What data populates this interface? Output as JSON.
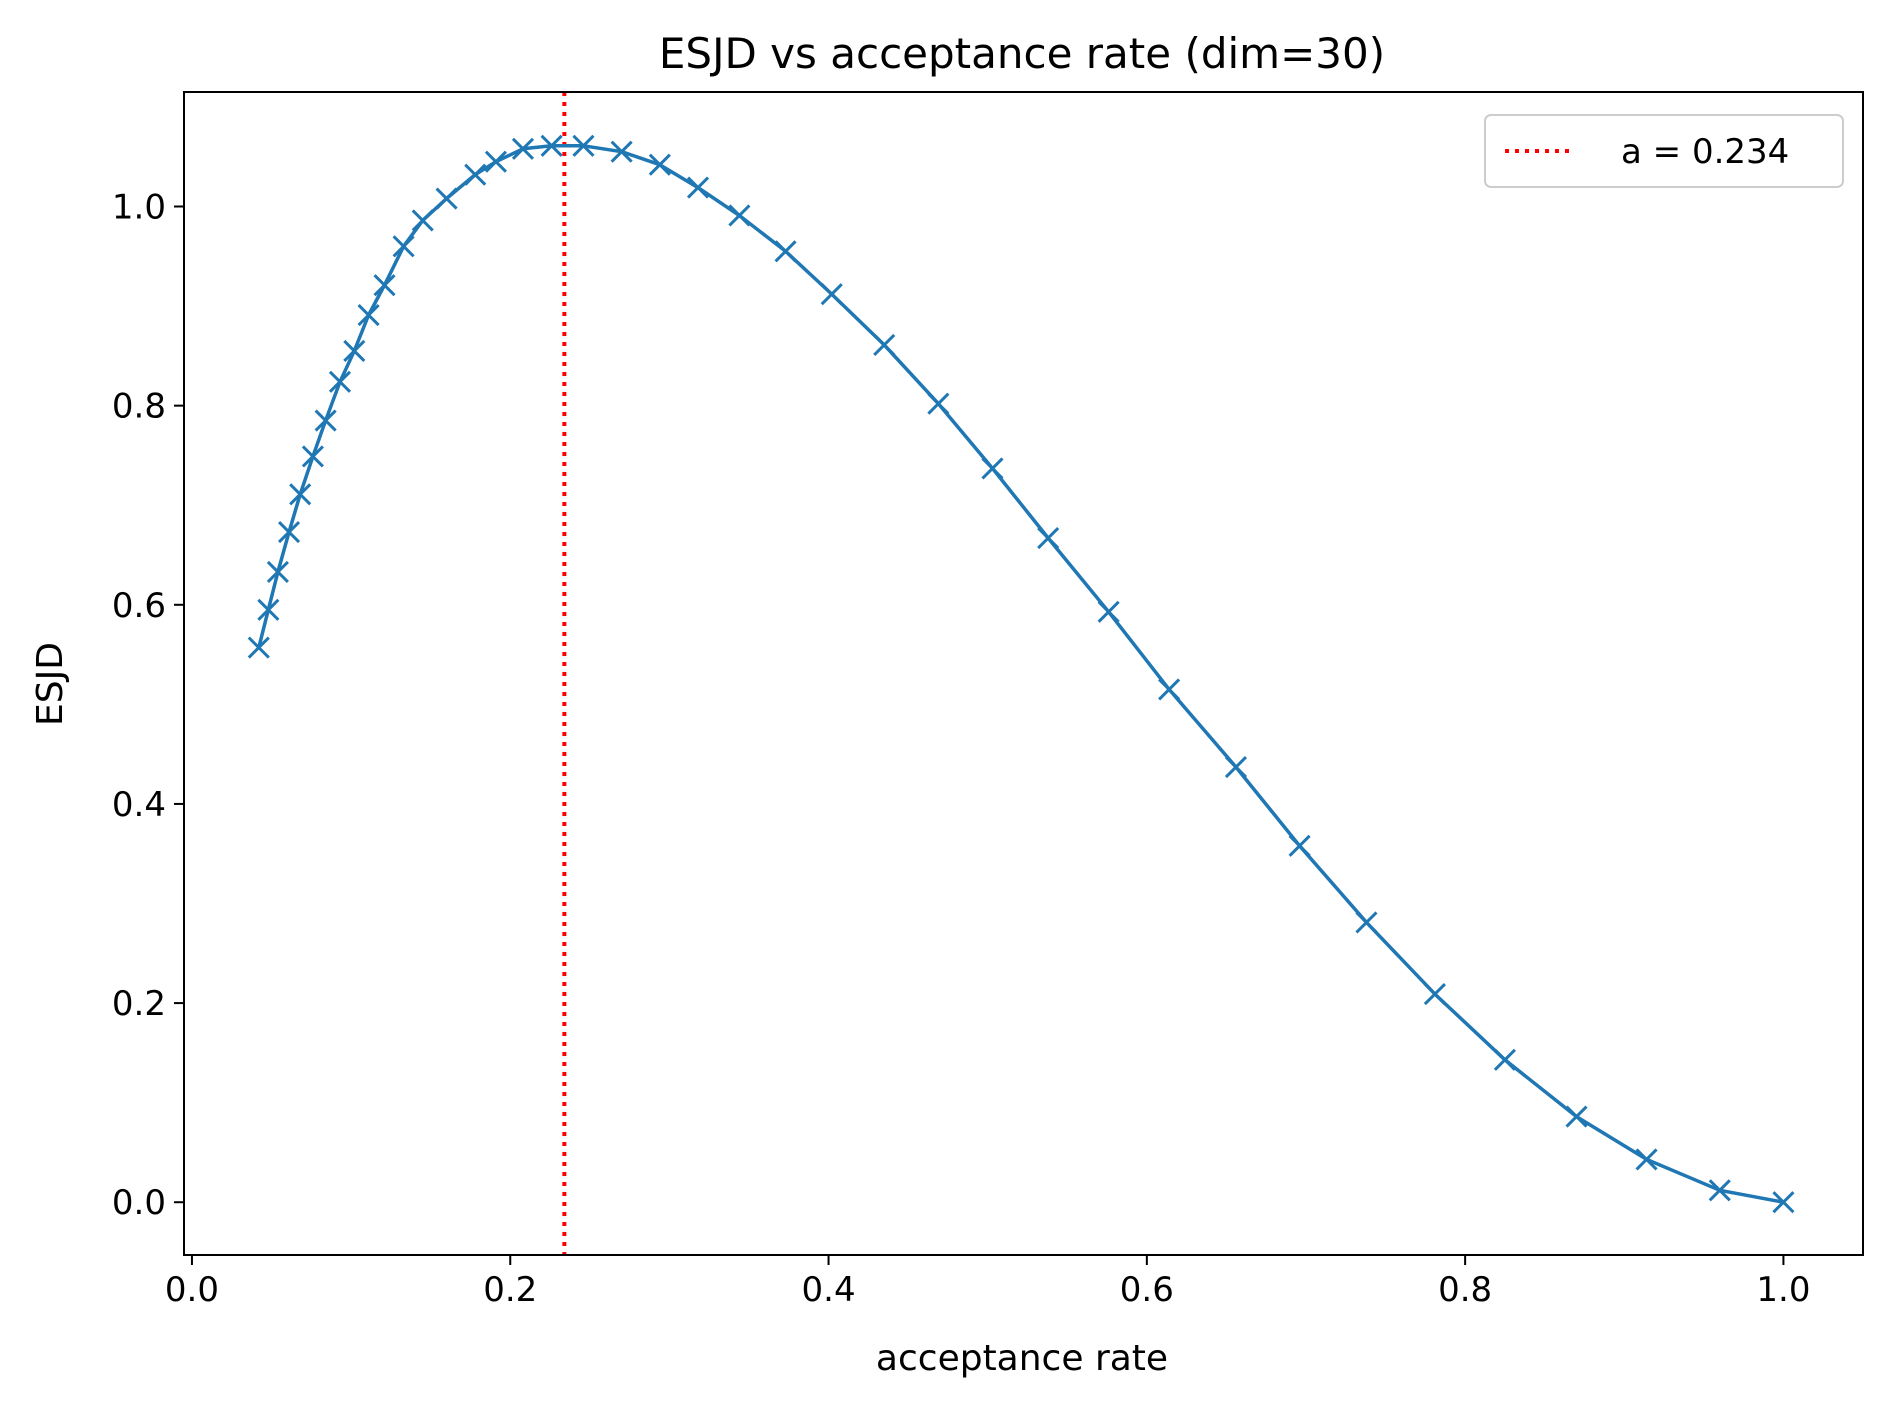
{
  "chart_data": {
    "type": "line",
    "title": "ESJD vs acceptance rate (dim=30)",
    "xlabel": "acceptance rate",
    "ylabel": "ESJD",
    "xlim": [
      -0.005,
      1.05
    ],
    "ylim": [
      -0.053,
      1.115
    ],
    "grid": false,
    "legend_position": "top-right",
    "xticks": [
      {
        "value": 0.0,
        "label": "0.0"
      },
      {
        "value": 0.2,
        "label": "0.2"
      },
      {
        "value": 0.4,
        "label": "0.4"
      },
      {
        "value": 0.6,
        "label": "0.6"
      },
      {
        "value": 0.8,
        "label": "0.8"
      },
      {
        "value": 1.0,
        "label": "1.0"
      }
    ],
    "yticks": [
      {
        "value": 0.0,
        "label": "0.0"
      },
      {
        "value": 0.2,
        "label": "0.2"
      },
      {
        "value": 0.4,
        "label": "0.4"
      },
      {
        "value": 0.6,
        "label": "0.6"
      },
      {
        "value": 0.8,
        "label": "0.8"
      },
      {
        "value": 1.0,
        "label": "1.0"
      }
    ],
    "series": [
      {
        "name": "ESJD",
        "color": "#1f77b4",
        "marker": "x",
        "points": [
          {
            "x": 0.042,
            "y": 0.557
          },
          {
            "x": 0.048,
            "y": 0.595
          },
          {
            "x": 0.054,
            "y": 0.633
          },
          {
            "x": 0.061,
            "y": 0.673
          },
          {
            "x": 0.068,
            "y": 0.711
          },
          {
            "x": 0.076,
            "y": 0.749
          },
          {
            "x": 0.084,
            "y": 0.785
          },
          {
            "x": 0.093,
            "y": 0.824
          },
          {
            "x": 0.102,
            "y": 0.855
          },
          {
            "x": 0.111,
            "y": 0.891
          },
          {
            "x": 0.121,
            "y": 0.921
          },
          {
            "x": 0.133,
            "y": 0.96
          },
          {
            "x": 0.145,
            "y": 0.986
          },
          {
            "x": 0.16,
            "y": 1.008
          },
          {
            "x": 0.178,
            "y": 1.032
          },
          {
            "x": 0.191,
            "y": 1.045
          },
          {
            "x": 0.208,
            "y": 1.058
          },
          {
            "x": 0.226,
            "y": 1.061
          },
          {
            "x": 0.246,
            "y": 1.061
          },
          {
            "x": 0.27,
            "y": 1.055
          },
          {
            "x": 0.294,
            "y": 1.042
          },
          {
            "x": 0.318,
            "y": 1.019
          },
          {
            "x": 0.344,
            "y": 0.991
          },
          {
            "x": 0.373,
            "y": 0.955
          },
          {
            "x": 0.402,
            "y": 0.912
          },
          {
            "x": 0.435,
            "y": 0.861
          },
          {
            "x": 0.469,
            "y": 0.802
          },
          {
            "x": 0.503,
            "y": 0.737
          },
          {
            "x": 0.538,
            "y": 0.667
          },
          {
            "x": 0.576,
            "y": 0.593
          },
          {
            "x": 0.614,
            "y": 0.515
          },
          {
            "x": 0.656,
            "y": 0.437
          },
          {
            "x": 0.696,
            "y": 0.358
          },
          {
            "x": 0.738,
            "y": 0.281
          },
          {
            "x": 0.781,
            "y": 0.209
          },
          {
            "x": 0.825,
            "y": 0.143
          },
          {
            "x": 0.87,
            "y": 0.086
          },
          {
            "x": 0.914,
            "y": 0.043
          },
          {
            "x": 0.96,
            "y": 0.012
          },
          {
            "x": 1.0,
            "y": 0.0
          }
        ]
      }
    ],
    "reference_lines": [
      {
        "orientation": "vertical",
        "x": 0.234,
        "color": "#ff0000",
        "style": "dotted",
        "label": "a = 0.234"
      }
    ],
    "legend": [
      {
        "label": "a = 0.234",
        "color": "#ff0000",
        "style": "dotted"
      }
    ]
  }
}
